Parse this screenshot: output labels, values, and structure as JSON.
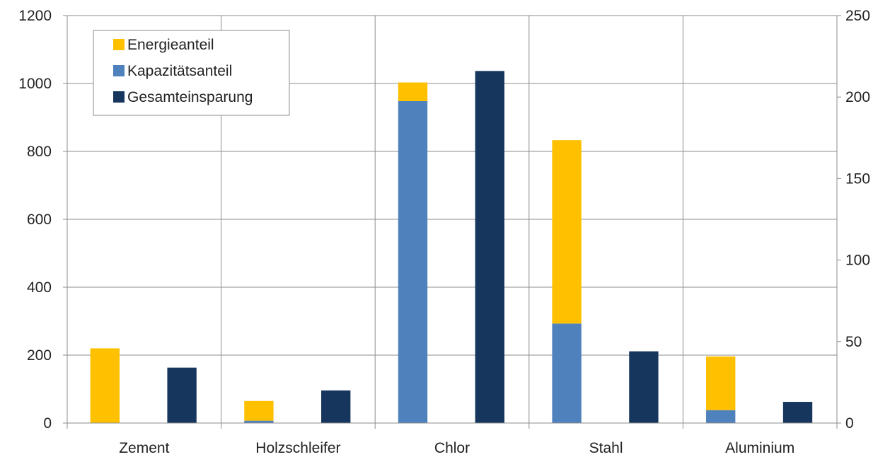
{
  "chart_data": {
    "type": "bar",
    "categories": [
      "Zement",
      "Holzschleifer",
      "Chlor",
      "Stahl",
      "Aluminium"
    ],
    "series": [
      {
        "name": "Energieanteil",
        "axis": "left",
        "stack": "left",
        "values": [
          220,
          58,
          55,
          540,
          158
        ],
        "color": "#FFC000"
      },
      {
        "name": "Kapazitätsanteil",
        "axis": "left",
        "stack": "left",
        "values": [
          0,
          7,
          948,
          293,
          38
        ],
        "color": "#4F81BD"
      },
      {
        "name": "Gesamteinsparung",
        "axis": "right",
        "stack": "right",
        "values": [
          34,
          20,
          216,
          44,
          13
        ],
        "color": "#17365D"
      }
    ],
    "y_left": {
      "min": 0,
      "max": 1200,
      "ticks": [
        0,
        200,
        400,
        600,
        800,
        1000,
        1200
      ]
    },
    "y_right": {
      "min": 0,
      "max": 250,
      "ticks": [
        0,
        50,
        100,
        150,
        200,
        250
      ]
    },
    "grid": true,
    "legend_position": "top-left"
  }
}
